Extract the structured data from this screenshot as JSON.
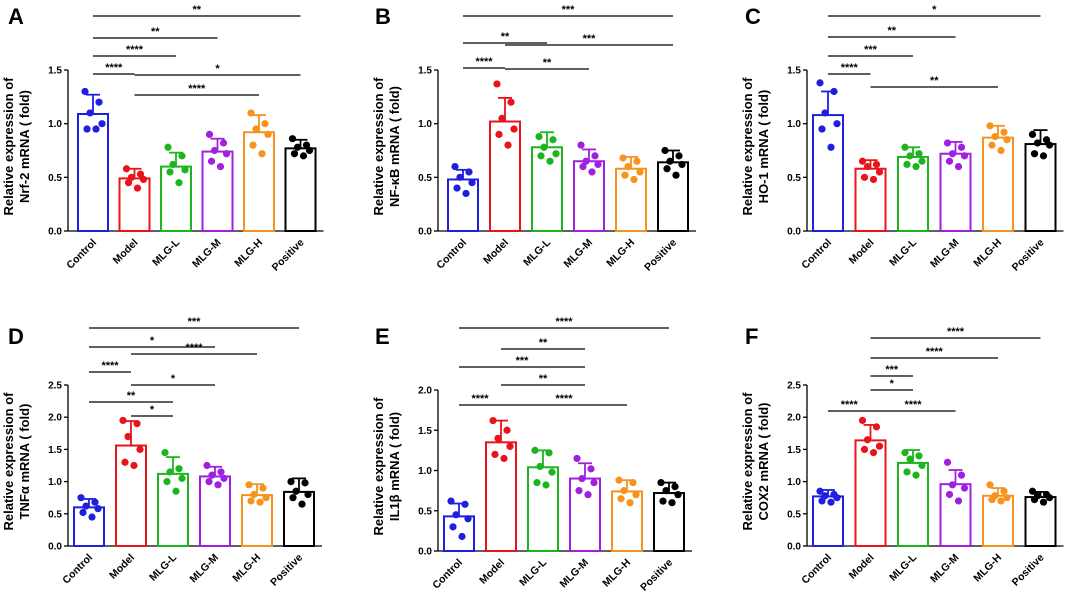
{
  "colors": {
    "Control": "#1f1fe0",
    "Model": "#e8141a",
    "MLG-L": "#1db51d",
    "MLG-M": "#a020e0",
    "MLG-H": "#f7921e",
    "Positive": "#000000"
  },
  "chart_data": [
    {
      "panel": "A",
      "type": "bar",
      "ylabel_lines": [
        "Relative expression of",
        "Nrf-2 mRNA ( fold)"
      ],
      "ylim": [
        0,
        1.5
      ],
      "yticks": [
        "0.0",
        "0.5",
        "1.0",
        "1.5"
      ],
      "categories": [
        "Control",
        "Model",
        "MLG-L",
        "MLG-M",
        "MLG-H",
        "Positive"
      ],
      "values": [
        1.09,
        0.49,
        0.6,
        0.74,
        0.92,
        0.77
      ],
      "errors": [
        0.18,
        0.09,
        0.13,
        0.12,
        0.16,
        0.08
      ],
      "points": [
        [
          1.3,
          1.2,
          1.1,
          1.0,
          0.95,
          0.95
        ],
        [
          0.58,
          0.53,
          0.5,
          0.48,
          0.45,
          0.4
        ],
        [
          0.78,
          0.7,
          0.62,
          0.57,
          0.55,
          0.45
        ],
        [
          0.9,
          0.82,
          0.75,
          0.72,
          0.65,
          0.6
        ],
        [
          1.1,
          1.0,
          0.95,
          0.9,
          0.8,
          0.72
        ],
        [
          0.86,
          0.8,
          0.78,
          0.75,
          0.72,
          0.7
        ]
      ],
      "brackets": [
        {
          "from": "Control",
          "to": "Positive",
          "label": "**"
        },
        {
          "from": "Control",
          "to": "MLG-M",
          "label": "**"
        },
        {
          "from": "Control",
          "to": "MLG-L",
          "label": "****"
        },
        {
          "from": "Control",
          "to": "Model",
          "label": "****"
        },
        {
          "from": "Model",
          "to": "Positive",
          "label": "*"
        },
        {
          "from": "Model",
          "to": "MLG-H",
          "label": "****"
        }
      ]
    },
    {
      "panel": "B",
      "type": "bar",
      "ylabel_lines": [
        "Relative expression of",
        "NF-κB mRNA ( fold)"
      ],
      "ylim": [
        0,
        1.5
      ],
      "yticks": [
        "0.0",
        "0.5",
        "1.0",
        "1.5"
      ],
      "categories": [
        "Control",
        "Model",
        "MLG-L",
        "MLG-M",
        "MLG-H",
        "Positive"
      ],
      "values": [
        0.48,
        1.02,
        0.78,
        0.65,
        0.58,
        0.64
      ],
      "errors": [
        0.09,
        0.22,
        0.14,
        0.11,
        0.11,
        0.11
      ],
      "points": [
        [
          0.6,
          0.55,
          0.5,
          0.45,
          0.4,
          0.35
        ],
        [
          1.37,
          1.2,
          1.05,
          0.95,
          0.9,
          0.8
        ],
        [
          0.88,
          0.85,
          0.78,
          0.72,
          0.7,
          0.65
        ],
        [
          0.8,
          0.7,
          0.65,
          0.62,
          0.6,
          0.55
        ],
        [
          0.68,
          0.65,
          0.6,
          0.55,
          0.52,
          0.48
        ],
        [
          0.75,
          0.7,
          0.65,
          0.62,
          0.58,
          0.52
        ]
      ],
      "brackets": [
        {
          "from": "Control",
          "to": "Positive",
          "label": "***"
        },
        {
          "from": "Control",
          "to": "MLG-L",
          "label": "**"
        },
        {
          "from": "Model",
          "to": "Positive",
          "label": "***"
        },
        {
          "from": "Control",
          "to": "Model",
          "label": "****"
        },
        {
          "from": "Model",
          "to": "MLG-M",
          "label": "**"
        }
      ]
    },
    {
      "panel": "C",
      "type": "bar",
      "ylabel_lines": [
        "Relative expression of",
        "HO-1 mRNA ( fold)"
      ],
      "ylim": [
        0,
        1.5
      ],
      "yticks": [
        "0.0",
        "0.5",
        "1.0",
        "1.5"
      ],
      "categories": [
        "Control",
        "Model",
        "MLG-L",
        "MLG-M",
        "MLG-H",
        "Positive"
      ],
      "values": [
        1.08,
        0.58,
        0.69,
        0.72,
        0.87,
        0.81
      ],
      "errors": [
        0.22,
        0.08,
        0.09,
        0.11,
        0.11,
        0.13
      ],
      "points": [
        [
          1.38,
          1.3,
          1.1,
          1.0,
          0.95,
          0.78
        ],
        [
          0.65,
          0.62,
          0.6,
          0.55,
          0.5,
          0.48
        ],
        [
          0.78,
          0.72,
          0.7,
          0.65,
          0.62,
          0.6
        ],
        [
          0.82,
          0.78,
          0.72,
          0.7,
          0.65,
          0.6
        ],
        [
          0.98,
          0.92,
          0.88,
          0.85,
          0.8,
          0.75
        ],
        [
          0.9,
          0.85,
          0.82,
          0.8,
          0.72,
          0.7
        ]
      ],
      "brackets": [
        {
          "from": "Control",
          "to": "Positive",
          "label": "*"
        },
        {
          "from": "Control",
          "to": "MLG-M",
          "label": "**"
        },
        {
          "from": "Control",
          "to": "MLG-L",
          "label": "***"
        },
        {
          "from": "Control",
          "to": "Model",
          "label": "****"
        },
        {
          "from": "Model",
          "to": "MLG-H",
          "label": "**"
        }
      ]
    },
    {
      "panel": "D",
      "type": "bar",
      "ylabel_lines": [
        "Relative expression of",
        "TNFα mRNA ( fold)"
      ],
      "ylim": [
        0,
        2.5
      ],
      "yticks": [
        "0.0",
        "0.5",
        "1.0",
        "1.5",
        "2.0",
        "2.5"
      ],
      "categories": [
        "Control",
        "Model",
        "MLG-L",
        "MLG-M",
        "MLG-H",
        "Positive"
      ],
      "values": [
        0.6,
        1.56,
        1.12,
        1.08,
        0.79,
        0.84
      ],
      "errors": [
        0.13,
        0.38,
        0.26,
        0.15,
        0.17,
        0.21
      ],
      "points": [
        [
          0.75,
          0.68,
          0.62,
          0.58,
          0.52,
          0.45
        ],
        [
          1.95,
          1.9,
          1.7,
          1.5,
          1.3,
          1.25
        ],
        [
          1.45,
          1.2,
          1.15,
          1.05,
          1.0,
          0.85
        ],
        [
          1.25,
          1.15,
          1.1,
          1.05,
          1.0,
          0.95
        ],
        [
          0.95,
          0.9,
          0.8,
          0.75,
          0.7,
          0.68
        ],
        [
          1.0,
          0.98,
          0.85,
          0.8,
          0.75,
          0.65
        ]
      ],
      "brackets": [
        {
          "from": "Control",
          "to": "Positive",
          "label": "***"
        },
        {
          "from": "Control",
          "to": "MLG-M",
          "label": "*"
        },
        {
          "from": "Model",
          "to": "MLG-H",
          "label": "****"
        },
        {
          "from": "Control",
          "to": "Model",
          "label": "****"
        },
        {
          "from": "Model",
          "to": "MLG-M",
          "label": "*"
        },
        {
          "from": "Control",
          "to": "MLG-L",
          "label": "**"
        },
        {
          "from": "Model",
          "to": "MLG-L",
          "label": "*"
        }
      ]
    },
    {
      "panel": "E",
      "type": "bar",
      "ylabel_lines": [
        "Relative expression of",
        "IL1β mRNA ( fold)"
      ],
      "ylim": [
        0,
        2.0
      ],
      "yticks": [
        "0.0",
        "0.5",
        "1.0",
        "1.5",
        "2.0"
      ],
      "categories": [
        "Control",
        "Model",
        "MLG-L",
        "MLG-M",
        "MLG-H",
        "Positive"
      ],
      "values": [
        0.43,
        1.35,
        1.04,
        0.9,
        0.74,
        0.72
      ],
      "errors": [
        0.16,
        0.27,
        0.21,
        0.19,
        0.14,
        0.13
      ],
      "points": [
        [
          0.62,
          0.58,
          0.45,
          0.4,
          0.3,
          0.18
        ],
        [
          1.62,
          1.5,
          1.4,
          1.3,
          1.2,
          1.15
        ],
        [
          1.25,
          1.22,
          1.05,
          0.98,
          0.85,
          0.82
        ],
        [
          1.15,
          1.02,
          0.9,
          0.85,
          0.75,
          0.7
        ],
        [
          0.88,
          0.85,
          0.75,
          0.7,
          0.65,
          0.6
        ],
        [
          0.85,
          0.8,
          0.75,
          0.7,
          0.62,
          0.6
        ]
      ],
      "brackets": [
        {
          "from": "Control",
          "to": "Positive",
          "label": "****"
        },
        {
          "from": "Model",
          "to": "MLG-M",
          "label": "**"
        },
        {
          "from": "Control",
          "to": "MLG-M",
          "label": "***"
        },
        {
          "from": "Model",
          "to": "MLG-M",
          "label": "**"
        },
        {
          "from": "Model",
          "to": "MLG-H",
          "label": "****"
        },
        {
          "from": "Control",
          "to": "Model",
          "label": "****"
        }
      ]
    },
    {
      "panel": "F",
      "type": "bar",
      "ylabel_lines": [
        "Relative expression of",
        "COX2 mRNA ( fold)"
      ],
      "ylim": [
        0,
        2.5
      ],
      "yticks": [
        "0.0",
        "0.5",
        "1.0",
        "1.5",
        "2.0",
        "2.5"
      ],
      "categories": [
        "Control",
        "Model",
        "MLG-L",
        "MLG-M",
        "MLG-H",
        "Positive"
      ],
      "values": [
        0.77,
        1.64,
        1.29,
        0.96,
        0.78,
        0.76
      ],
      "errors": [
        0.1,
        0.24,
        0.2,
        0.22,
        0.12,
        0.08
      ],
      "points": [
        [
          0.85,
          0.8,
          0.78,
          0.75,
          0.7,
          0.68
        ],
        [
          1.95,
          1.85,
          1.65,
          1.55,
          1.5,
          1.45
        ],
        [
          1.45,
          1.4,
          1.35,
          1.25,
          1.15,
          1.1
        ],
        [
          1.3,
          1.1,
          0.95,
          0.9,
          0.8,
          0.7
        ],
        [
          0.95,
          0.85,
          0.78,
          0.75,
          0.72,
          0.7
        ],
        [
          0.85,
          0.8,
          0.78,
          0.75,
          0.72,
          0.68
        ]
      ],
      "brackets": [
        {
          "from": "Model",
          "to": "Positive",
          "label": "****"
        },
        {
          "from": "Model",
          "to": "MLG-H",
          "label": "****"
        },
        {
          "from": "Model",
          "to": "MLG-L",
          "label": "***"
        },
        {
          "from": "Model",
          "to": "MLG-L",
          "label": "*"
        },
        {
          "from": "Control",
          "to": "Model",
          "label": "****"
        },
        {
          "from": "Model",
          "to": "MLG-M",
          "label": "****"
        }
      ]
    }
  ]
}
